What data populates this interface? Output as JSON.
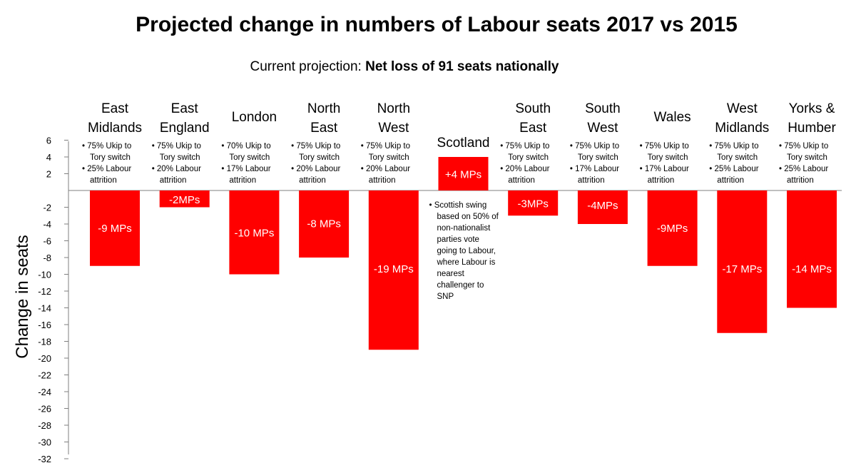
{
  "chart_data": {
    "type": "bar",
    "title": "Projected change in numbers of Labour seats 2017 vs 2015",
    "subtitle_prefix": "Current projection: ",
    "subtitle_bold": "Net loss of 91 seats nationally",
    "ylabel": "Change in seats",
    "xlabel": "",
    "ylim": [
      -32,
      6
    ],
    "yticks": [
      6,
      4,
      2,
      -2,
      -4,
      -6,
      -8,
      -10,
      -12,
      -14,
      -16,
      -18,
      -20,
      -22,
      -24,
      -26,
      -28,
      -30,
      -32
    ],
    "bar_color": "#ff0000",
    "categories": [
      {
        "lines": [
          "East",
          "Midlands"
        ],
        "value": -9,
        "label": "-9 MPs",
        "notes": [
          "• 75% Ukip to",
          "Tory switch",
          "• 25% Labour",
          "attrition"
        ]
      },
      {
        "lines": [
          "East",
          "England"
        ],
        "value": -2,
        "label": "-2MPs",
        "notes": [
          "• 75% Ukip to",
          "Tory switch",
          "• 20% Labour",
          "attrition"
        ]
      },
      {
        "lines": [
          "London"
        ],
        "value": -10,
        "label": "-10 MPs",
        "notes": [
          "• 70% Ukip to",
          "Tory switch",
          "• 17% Labour",
          "attrition"
        ]
      },
      {
        "lines": [
          "North",
          "East"
        ],
        "value": -8,
        "label": "-8 MPs",
        "notes": [
          "• 75% Ukip to",
          "Tory switch",
          "• 20% Labour",
          "attrition"
        ]
      },
      {
        "lines": [
          "North",
          "West"
        ],
        "value": -19,
        "label": "-19 MPs",
        "notes": [
          "• 75% Ukip to",
          "Tory switch",
          "• 20% Labour",
          "attrition"
        ]
      },
      {
        "lines": [
          "Scotland"
        ],
        "value": 4,
        "label": "+4 MPs",
        "notes": [
          "• Scottish swing",
          "based on 50% of",
          "non-nationalist",
          "parties vote",
          "going to Labour,",
          "where Labour is",
          "nearest",
          "challenger to",
          "SNP"
        ]
      },
      {
        "lines": [
          "South",
          "East"
        ],
        "value": -3,
        "label": "-3MPs",
        "notes": [
          "• 75% Ukip to",
          "Tory switch",
          "• 20% Labour",
          "attrition"
        ]
      },
      {
        "lines": [
          "South",
          "West"
        ],
        "value": -4,
        "label": "-4MPs",
        "notes": [
          "• 75% Ukip to",
          "Tory switch",
          "• 17% Labour",
          "attrition"
        ]
      },
      {
        "lines": [
          "Wales"
        ],
        "value": -9,
        "label": "-9MPs",
        "notes": [
          "• 75% Ukip to",
          "Tory switch",
          "• 17% Labour",
          "attrition"
        ]
      },
      {
        "lines": [
          "West",
          "Midlands"
        ],
        "value": -17,
        "label": "-17 MPs",
        "notes": [
          "• 75% Ukip to",
          "Tory switch",
          "• 25% Labour",
          "attrition"
        ]
      },
      {
        "lines": [
          "Yorks &",
          "Humber"
        ],
        "value": -14,
        "label": "-14 MPs",
        "notes": [
          "• 75% Ukip to",
          "Tory switch",
          "• 25% Labour",
          "attrition"
        ]
      }
    ]
  }
}
